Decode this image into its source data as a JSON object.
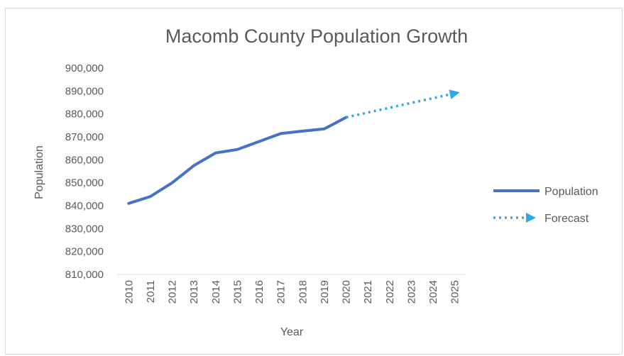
{
  "chart_data": {
    "type": "line",
    "title": "Macomb County Population Growth",
    "xlabel": "Year",
    "ylabel": "Population",
    "categories": [
      "2010",
      "2011",
      "2012",
      "2013",
      "2014",
      "2015",
      "2016",
      "2017",
      "2018",
      "2019",
      "2020",
      "2021",
      "2022",
      "2023",
      "2024",
      "2025"
    ],
    "yticks": [
      "810,000",
      "820,000",
      "830,000",
      "840,000",
      "850,000",
      "860,000",
      "870,000",
      "880,000",
      "890,000",
      "900,000"
    ],
    "ylim": [
      810000,
      900000
    ],
    "grid": false,
    "legend_position": "right",
    "series": [
      {
        "name": "Population",
        "style": "solid",
        "color": "#4472c4",
        "x": [
          "2010",
          "2011",
          "2012",
          "2013",
          "2014",
          "2015",
          "2016",
          "2017",
          "2018",
          "2019",
          "2020"
        ],
        "values": [
          841000,
          844000,
          850000,
          857500,
          863000,
          864500,
          868000,
          871500,
          872500,
          873500,
          878500
        ]
      },
      {
        "name": "Forecast",
        "style": "dotted",
        "color": "#2ea8e6",
        "x": [
          "2020",
          "2025"
        ],
        "values": [
          878500,
          889000
        ]
      }
    ]
  }
}
